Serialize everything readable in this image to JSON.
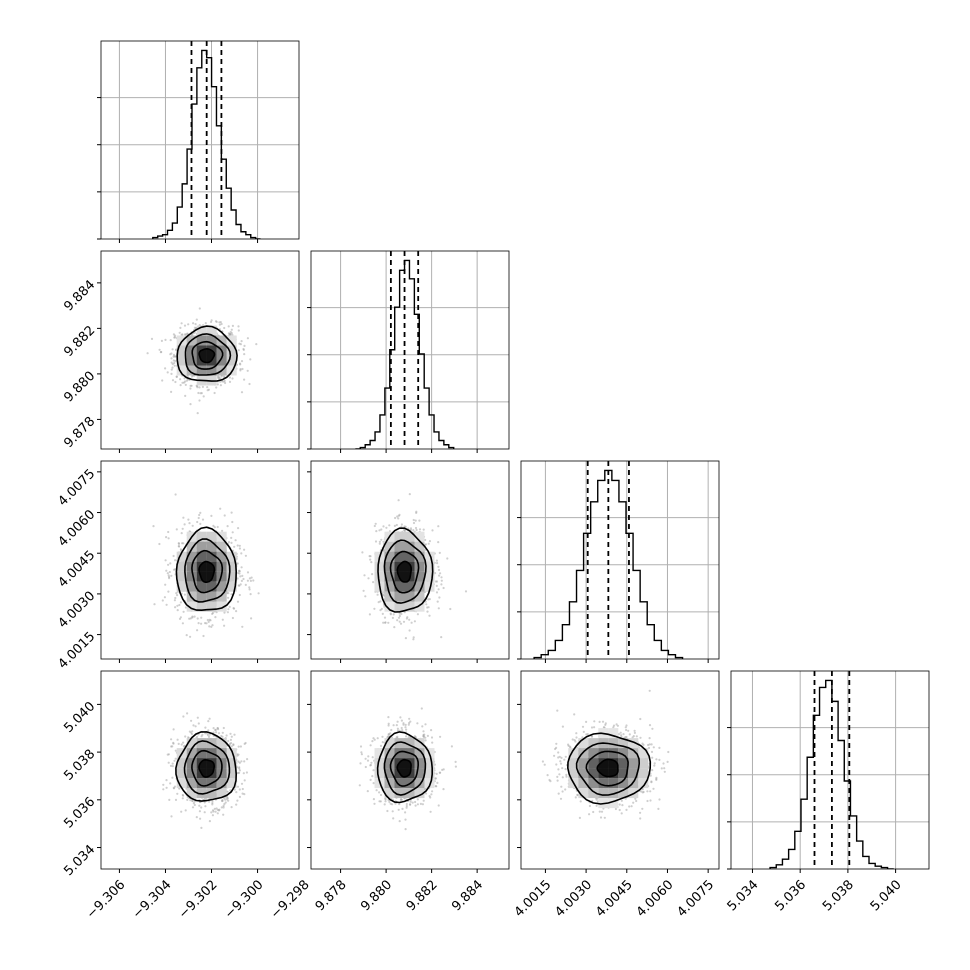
{
  "chart_data": {
    "type": "corner",
    "parameters": [
      {
        "axis_range": [
          -9.3068,
          -9.2982
        ],
        "ticks": [
          "−9.306",
          "−9.304",
          "−9.302",
          "−9.300",
          "−9.298"
        ],
        "tick_values": [
          -9.306,
          -9.304,
          -9.302,
          -9.3,
          -9.298
        ],
        "quantiles": [
          -9.30287,
          -9.30221,
          -9.30157
        ],
        "mean": -9.30221,
        "sd": 0.00065
      },
      {
        "axis_range": [
          9.8767,
          9.8854
        ],
        "ticks": [
          "9.878",
          "9.880",
          "9.882",
          "9.884"
        ],
        "tick_values": [
          9.878,
          9.88,
          9.882,
          9.884
        ],
        "quantiles": [
          9.88021,
          9.88081,
          9.88141
        ],
        "mean": 9.88081,
        "sd": 0.0006
      },
      {
        "axis_range": [
          4.0006,
          4.0079
        ],
        "ticks": [
          "4.0015",
          "4.0030",
          "4.0045",
          "4.0060",
          "4.0075"
        ],
        "tick_values": [
          4.0015,
          4.003,
          4.0045,
          4.006,
          4.0075
        ],
        "quantiles": [
          4.00306,
          4.00382,
          4.00458
        ],
        "mean": 4.00382,
        "sd": 0.00076
      },
      {
        "axis_range": [
          5.0331,
          5.0414
        ],
        "ticks": [
          "5.034",
          "5.036",
          "5.038",
          "5.040"
        ],
        "tick_values": [
          5.034,
          5.036,
          5.038,
          5.04
        ],
        "quantiles": [
          5.0366,
          5.03733,
          5.03806
        ],
        "mean": 5.03733,
        "sd": 0.00072
      }
    ],
    "histogram_counts": [
      [
        1,
        2,
        3,
        6,
        11,
        22,
        38,
        62,
        93,
        118,
        130,
        125,
        105,
        78,
        55,
        35,
        20,
        10,
        5,
        3,
        1,
        0
      ],
      [
        0,
        1,
        3,
        6,
        12,
        24,
        43,
        70,
        100,
        126,
        133,
        120,
        95,
        67,
        43,
        24,
        12,
        6,
        3,
        1
      ],
      [
        1,
        3,
        6,
        13,
        24,
        40,
        62,
        88,
        110,
        125,
        132,
        125,
        110,
        88,
        62,
        40,
        24,
        13,
        6,
        3,
        1
      ],
      [
        1,
        3,
        7,
        14,
        27,
        50,
        80,
        110,
        130,
        135,
        120,
        92,
        63,
        38,
        20,
        9,
        4,
        2,
        1,
        0
      ]
    ],
    "quantile_lines": "dashed",
    "contour_levels": 4,
    "grid": true
  }
}
